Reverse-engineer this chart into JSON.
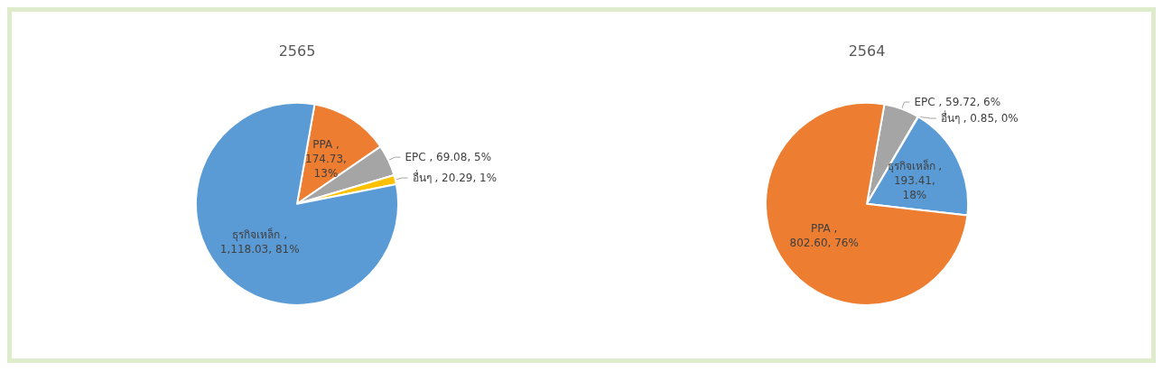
{
  "chart_data": [
    {
      "type": "pie",
      "title": "2565",
      "categories": [
        "PPA",
        "EPC",
        "อื่นๆ",
        "ธุรกิจเหล็ก"
      ],
      "values": [
        174.73,
        69.08,
        20.29,
        1118.03
      ],
      "colors": [
        "#ed7d31",
        "#a5a5a5",
        "#ffc000",
        "#5b9bd5"
      ],
      "value_labels": [
        ", 174.73, 13%",
        ", 69.08, 5%",
        ", 20.29, 1%",
        ", 1,118.03, 81%"
      ],
      "legend": false
    },
    {
      "type": "pie",
      "title": "2564",
      "categories": [
        "EPC",
        "อื่นๆ",
        "ธุรกิจเหล็ก",
        "PPA"
      ],
      "values": [
        59.72,
        0.85,
        193.41,
        802.6
      ],
      "colors": [
        "#a5a5a5",
        "#ffc000",
        "#5b9bd5",
        "#ed7d31"
      ],
      "value_labels": [
        ", 59.72, 6%",
        ", 0.85, 0%",
        ", 193.41, 18%",
        ", 802.60, 76%"
      ],
      "legend": false
    }
  ]
}
